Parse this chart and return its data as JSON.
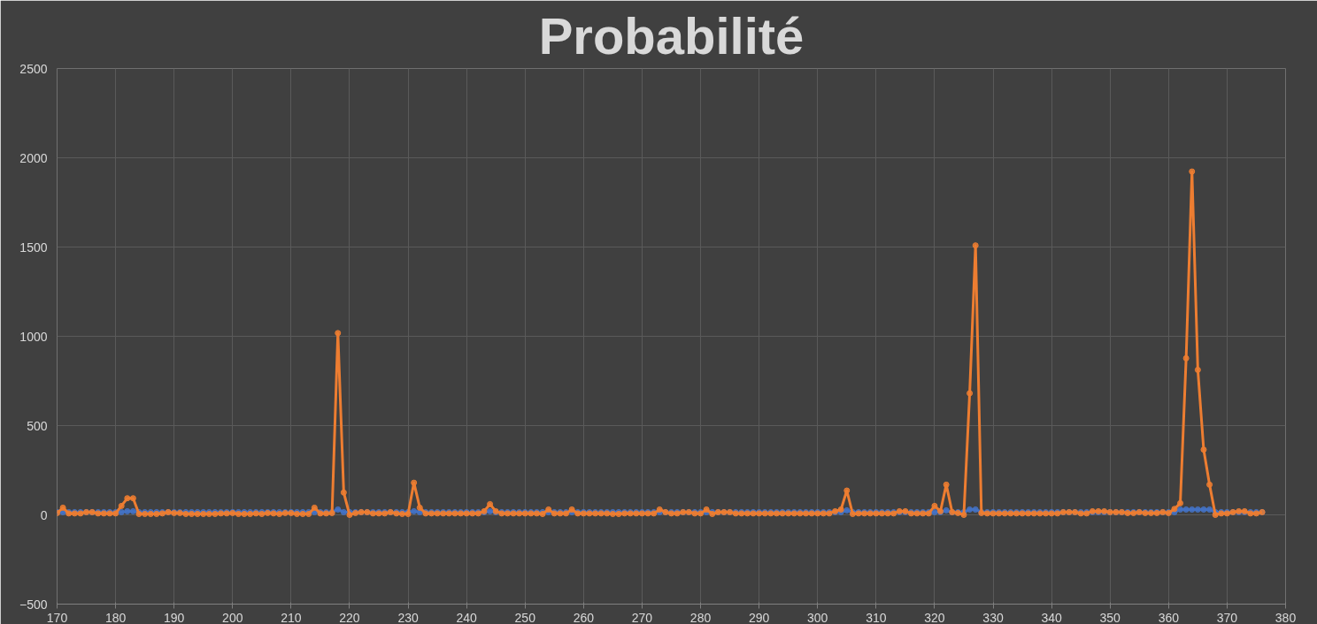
{
  "chart_data": {
    "type": "line",
    "title": "Probabilité",
    "x": [
      170,
      171,
      172,
      173,
      174,
      175,
      176,
      177,
      178,
      179,
      180,
      181,
      182,
      183,
      184,
      185,
      186,
      187,
      188,
      189,
      190,
      191,
      192,
      193,
      194,
      195,
      196,
      197,
      198,
      199,
      200,
      201,
      202,
      203,
      204,
      205,
      206,
      207,
      208,
      209,
      210,
      211,
      212,
      213,
      214,
      215,
      216,
      217,
      218,
      219,
      220,
      221,
      222,
      223,
      224,
      225,
      226,
      227,
      228,
      229,
      230,
      231,
      232,
      233,
      234,
      235,
      236,
      237,
      238,
      239,
      240,
      241,
      242,
      243,
      244,
      245,
      246,
      247,
      248,
      249,
      250,
      251,
      252,
      253,
      254,
      255,
      256,
      257,
      258,
      259,
      260,
      261,
      262,
      263,
      264,
      265,
      266,
      267,
      268,
      269,
      270,
      271,
      272,
      273,
      274,
      275,
      276,
      277,
      278,
      279,
      280,
      281,
      282,
      283,
      284,
      285,
      286,
      287,
      288,
      289,
      290,
      291,
      292,
      293,
      294,
      295,
      296,
      297,
      298,
      299,
      300,
      301,
      302,
      303,
      304,
      305,
      306,
      307,
      308,
      309,
      310,
      311,
      312,
      313,
      314,
      315,
      316,
      317,
      318,
      319,
      320,
      321,
      322,
      323,
      324,
      325,
      326,
      327,
      328,
      329,
      330,
      331,
      332,
      333,
      334,
      335,
      336,
      337,
      338,
      339,
      340,
      341,
      342,
      343,
      344,
      345,
      346,
      347,
      348,
      349,
      350,
      351,
      352,
      353,
      354,
      355,
      356,
      357,
      358,
      359,
      360,
      361,
      362,
      363,
      364,
      365,
      366,
      367,
      368,
      369,
      370,
      371,
      372,
      373,
      374,
      375,
      376
    ],
    "series": [
      {
        "color": "#4472c4",
        "values": [
          15,
          15,
          15,
          15,
          15,
          15,
          15,
          15,
          15,
          15,
          15,
          15,
          20,
          20,
          15,
          15,
          15,
          15,
          15,
          15,
          15,
          15,
          15,
          15,
          15,
          15,
          15,
          15,
          15,
          15,
          15,
          15,
          15,
          15,
          15,
          15,
          15,
          15,
          15,
          15,
          15,
          15,
          15,
          15,
          15,
          15,
          15,
          15,
          30,
          15,
          15,
          15,
          15,
          15,
          15,
          15,
          15,
          15,
          15,
          15,
          15,
          20,
          15,
          15,
          15,
          15,
          15,
          15,
          15,
          15,
          15,
          15,
          15,
          15,
          20,
          15,
          15,
          15,
          15,
          15,
          15,
          15,
          15,
          15,
          15,
          15,
          15,
          15,
          15,
          15,
          15,
          15,
          15,
          15,
          15,
          15,
          15,
          15,
          15,
          15,
          15,
          15,
          15,
          15,
          15,
          15,
          15,
          15,
          15,
          15,
          15,
          15,
          15,
          15,
          15,
          15,
          15,
          15,
          15,
          15,
          15,
          15,
          15,
          15,
          15,
          15,
          15,
          15,
          15,
          15,
          15,
          15,
          15,
          15,
          15,
          25,
          15,
          15,
          15,
          15,
          15,
          15,
          15,
          15,
          15,
          15,
          15,
          15,
          15,
          15,
          15,
          15,
          25,
          15,
          15,
          15,
          30,
          30,
          15,
          15,
          15,
          15,
          15,
          15,
          15,
          15,
          15,
          15,
          15,
          15,
          15,
          15,
          15,
          15,
          15,
          15,
          15,
          15,
          15,
          15,
          15,
          15,
          15,
          15,
          15,
          15,
          15,
          15,
          15,
          15,
          15,
          15,
          30,
          30,
          30,
          30,
          30,
          30,
          15,
          15,
          15,
          15,
          15,
          15,
          15,
          15,
          15
        ]
      },
      {
        "color": "#ed7d31",
        "values": [
          10,
          40,
          8,
          8,
          8,
          15,
          15,
          8,
          8,
          8,
          8,
          50,
          93,
          93,
          5,
          5,
          5,
          5,
          8,
          15,
          10,
          10,
          5,
          5,
          5,
          5,
          5,
          5,
          8,
          8,
          10,
          5,
          5,
          5,
          8,
          5,
          10,
          8,
          5,
          10,
          10,
          5,
          5,
          5,
          40,
          8,
          8,
          10,
          1018,
          125,
          0,
          10,
          15,
          15,
          8,
          8,
          8,
          15,
          8,
          5,
          5,
          180,
          40,
          8,
          8,
          8,
          8,
          8,
          8,
          8,
          8,
          8,
          8,
          20,
          60,
          20,
          8,
          8,
          8,
          8,
          8,
          8,
          8,
          5,
          30,
          8,
          8,
          8,
          30,
          8,
          8,
          8,
          8,
          8,
          8,
          5,
          5,
          8,
          8,
          8,
          8,
          8,
          8,
          30,
          15,
          8,
          8,
          15,
          15,
          8,
          8,
          30,
          5,
          15,
          15,
          15,
          8,
          8,
          8,
          8,
          8,
          8,
          8,
          8,
          8,
          8,
          8,
          8,
          8,
          8,
          8,
          8,
          8,
          20,
          30,
          136,
          5,
          8,
          8,
          8,
          8,
          8,
          8,
          8,
          20,
          20,
          8,
          8,
          8,
          8,
          50,
          20,
          169,
          15,
          10,
          0,
          681,
          1509,
          10,
          8,
          8,
          8,
          8,
          8,
          8,
          8,
          8,
          8,
          8,
          8,
          8,
          8,
          15,
          15,
          15,
          8,
          8,
          20,
          20,
          20,
          15,
          15,
          15,
          10,
          10,
          15,
          10,
          10,
          10,
          15,
          10,
          33,
          65,
          877,
          1923,
          812,
          365,
          169,
          0,
          8,
          8,
          15,
          20,
          20,
          8,
          8,
          15
        ]
      }
    ],
    "xlim": [
      170,
      380
    ],
    "xticks": [
      170,
      180,
      190,
      200,
      210,
      220,
      230,
      240,
      250,
      260,
      270,
      280,
      290,
      300,
      310,
      320,
      330,
      340,
      350,
      360,
      370,
      380
    ],
    "ylim": [
      -500,
      2500
    ],
    "yticks": [
      -500,
      0,
      500,
      1000,
      1500,
      2000,
      2500
    ],
    "grid": true,
    "marker": "circle",
    "line_style": "solid"
  }
}
